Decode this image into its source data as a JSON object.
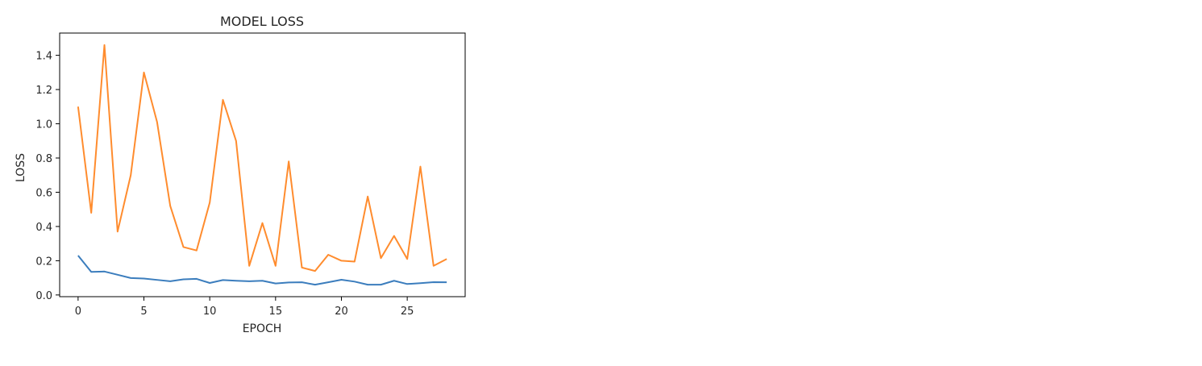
{
  "chart_data": {
    "type": "line",
    "title": "MODEL LOSS",
    "xlabel": "EPOCH",
    "ylabel": "LOSS",
    "xlim": [
      -1.4,
      29.4
    ],
    "ylim": [
      -0.01,
      1.53
    ],
    "xticks": [
      0,
      5,
      10,
      15,
      20,
      25
    ],
    "yticks": [
      0.0,
      0.2,
      0.4,
      0.6,
      0.8,
      1.0,
      1.2,
      1.4
    ],
    "grid": false,
    "series": [
      {
        "color": "#3b7dbd",
        "x": [
          0,
          1,
          2,
          3,
          4,
          5,
          6,
          7,
          8,
          9,
          10,
          11,
          12,
          13,
          14,
          15,
          16,
          17,
          18,
          19,
          20,
          21,
          22,
          23,
          24,
          25,
          26,
          27,
          28
        ],
        "values": [
          0.23,
          0.135,
          0.137,
          0.118,
          0.099,
          0.096,
          0.088,
          0.08,
          0.091,
          0.094,
          0.07,
          0.087,
          0.083,
          0.08,
          0.083,
          0.067,
          0.073,
          0.074,
          0.06,
          0.074,
          0.089,
          0.078,
          0.06,
          0.06,
          0.083,
          0.064,
          0.069,
          0.075,
          0.074
        ]
      },
      {
        "color": "#ff8c2e",
        "x": [
          0,
          1,
          2,
          3,
          4,
          5,
          6,
          7,
          8,
          9,
          10,
          11,
          12,
          13,
          14,
          15,
          16,
          17,
          18,
          19,
          20,
          21,
          22,
          23,
          24,
          25,
          26,
          27,
          28
        ],
        "values": [
          1.1,
          0.48,
          1.46,
          0.37,
          0.7,
          1.3,
          1.01,
          0.52,
          0.28,
          0.26,
          0.54,
          1.14,
          0.9,
          0.17,
          0.42,
          0.17,
          0.78,
          0.16,
          0.14,
          0.235,
          0.2,
          0.195,
          0.575,
          0.215,
          0.345,
          0.21,
          0.75,
          0.17,
          0.21
        ]
      }
    ]
  }
}
